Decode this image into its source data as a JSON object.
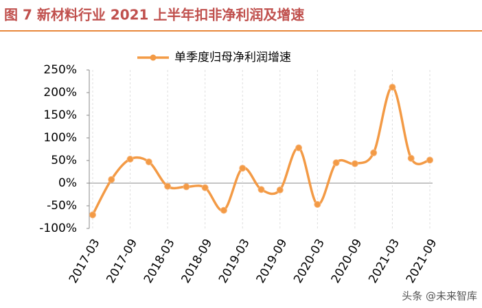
{
  "chart_data": {
    "type": "line",
    "title": "图 7 新材料行业 2021 上半年扣非净利润及增速",
    "watermark": "头条 @未来智库",
    "categories": [
      "2017-03",
      null,
      "2017-09",
      null,
      "2018-03",
      null,
      "2018-09",
      null,
      "2019-03",
      null,
      "2019-09",
      null,
      "2020-03",
      null,
      "2020-09",
      null,
      "2021-03",
      null,
      "2021-09"
    ],
    "series": [
      {
        "name": "单季度归母净利润增速",
        "color": "#f39a45",
        "values": [
          -70,
          8,
          53,
          47,
          -7,
          -8,
          -10,
          -60,
          33,
          -14,
          -15,
          78,
          -47,
          45,
          43,
          67,
          212,
          55,
          51
        ]
      }
    ],
    "ylim": [
      -100,
      250
    ],
    "yticks": [
      {
        "value": -100,
        "label": "-100%"
      },
      {
        "value": -50,
        "label": "-50%"
      },
      {
        "value": 0,
        "label": "0%"
      },
      {
        "value": 50,
        "label": "50%"
      },
      {
        "value": 100,
        "label": "100%"
      },
      {
        "value": 150,
        "label": "150%"
      },
      {
        "value": 200,
        "label": "200%"
      },
      {
        "value": 250,
        "label": "250%"
      }
    ],
    "grid": true,
    "legend": "top",
    "smooth": true
  }
}
